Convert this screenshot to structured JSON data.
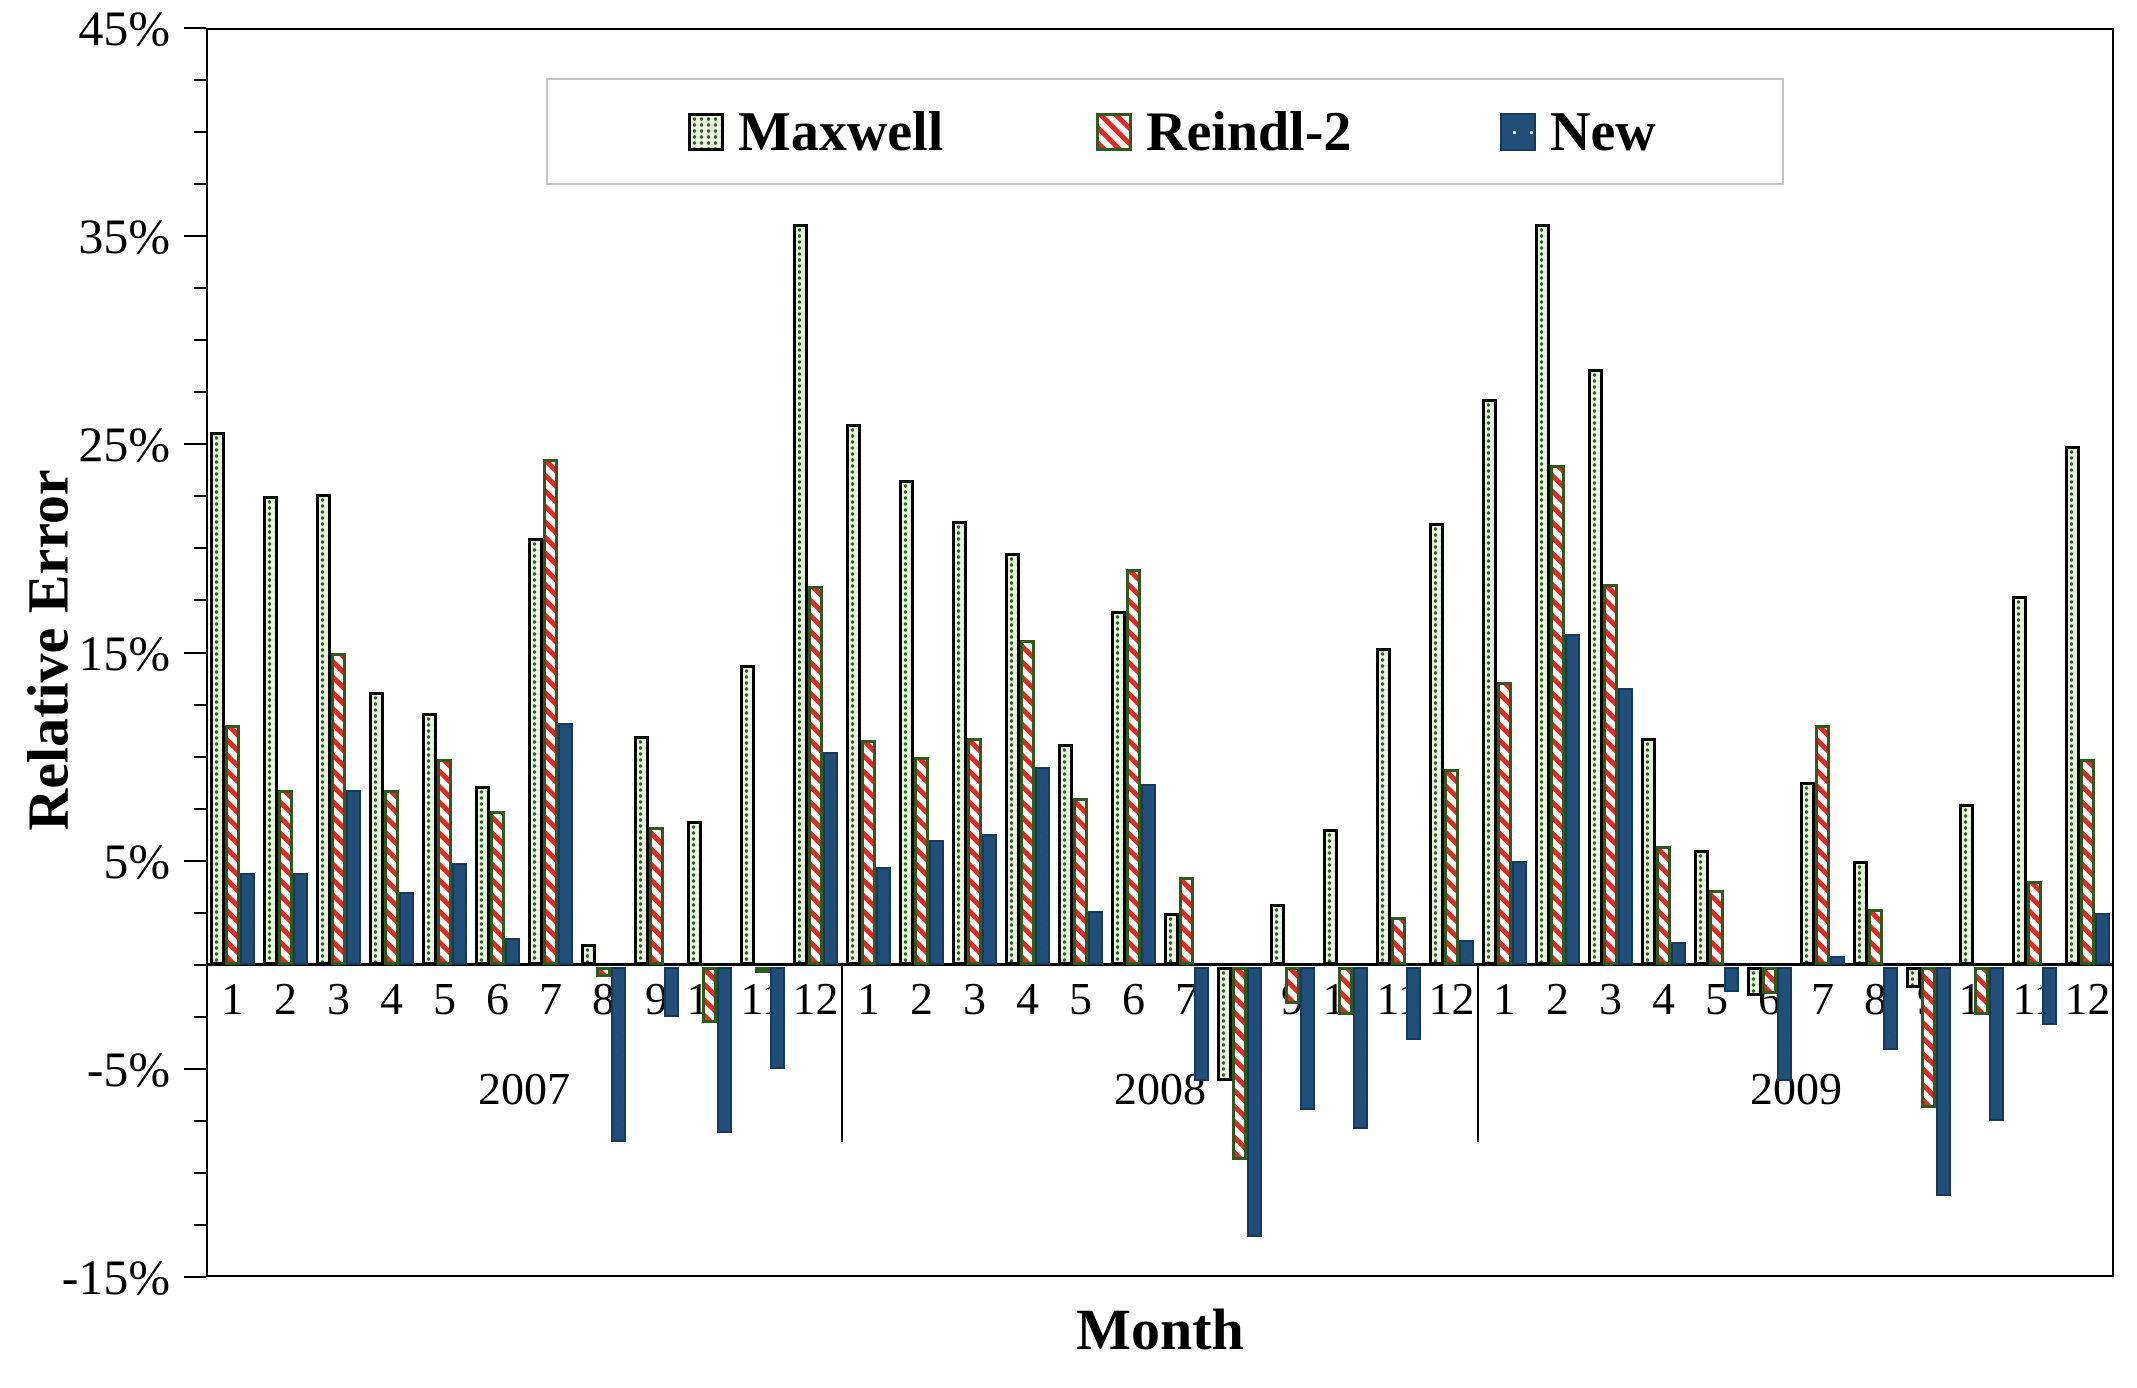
{
  "chart_data": {
    "type": "bar",
    "title": "",
    "ylabel": "Relative Error",
    "xlabel": "Month",
    "ylim": [
      -15,
      45
    ],
    "ytick_major_step": 10,
    "ytick_minor_step": 2.5,
    "ytick_labels": [
      "45%",
      "35%",
      "25%",
      "15%",
      "5%",
      "-5%",
      "-15%"
    ],
    "ytick_values": [
      45,
      35,
      25,
      15,
      5,
      -5,
      -15
    ],
    "grid": false,
    "legend_position": "top-center",
    "years": [
      "2007",
      "2008",
      "2009"
    ],
    "month_labels": [
      "1",
      "2",
      "3",
      "4",
      "5",
      "6",
      "7",
      "8",
      "9",
      "10",
      "11",
      "12"
    ],
    "series": [
      {
        "name": "Maxwell",
        "swatch": "maxwell",
        "values": [
          25.6,
          22.5,
          22.6,
          13.1,
          12.1,
          8.6,
          20.5,
          1.0,
          11.0,
          6.9,
          14.4,
          35.6,
          26.0,
          23.3,
          21.3,
          19.8,
          10.6,
          17.0,
          2.5,
          -5.5,
          2.9,
          6.5,
          15.2,
          21.2,
          27.2,
          35.6,
          28.6,
          10.9,
          5.5,
          -1.4,
          8.8,
          5.0,
          -1.0,
          7.7,
          17.7,
          24.9
        ]
      },
      {
        "name": "Reindl-2",
        "swatch": "reindl",
        "values": [
          11.5,
          8.4,
          15.0,
          8.4,
          9.9,
          7.4,
          24.3,
          -0.5,
          6.6,
          -2.7,
          -0.3,
          18.2,
          10.8,
          10.0,
          10.9,
          15.6,
          8.0,
          19.0,
          4.2,
          -9.3,
          -1.8,
          -2.3,
          2.3,
          9.4,
          13.6,
          24.0,
          18.3,
          5.7,
          3.6,
          -1.3,
          11.5,
          2.7,
          -6.8,
          -2.3,
          4.0,
          9.9
        ]
      },
      {
        "name": "New",
        "swatch": "new",
        "values": [
          4.4,
          4.4,
          8.4,
          3.5,
          4.9,
          1.3,
          11.6,
          -8.4,
          -2.4,
          -8.0,
          -4.9,
          10.2,
          4.7,
          6.0,
          6.3,
          9.5,
          2.6,
          8.7,
          -5.5,
          -13.0,
          -6.9,
          -7.8,
          -3.5,
          1.2,
          5.0,
          15.9,
          13.3,
          1.1,
          -1.2,
          -5.5,
          0.4,
          -4.0,
          -11.0,
          -7.4,
          -2.8,
          2.5
        ]
      }
    ],
    "colors": {
      "maxwell_fill": "#e9f3e0",
      "maxwell_dot": "#33602a",
      "maxwell_border": "#000000",
      "reindl_stripe": "#e8251f",
      "reindl_bg": "#ffffff",
      "reindl_border": "#2e5a1c",
      "new_fill": "#1f4e79",
      "new_border": "#16395c"
    }
  }
}
